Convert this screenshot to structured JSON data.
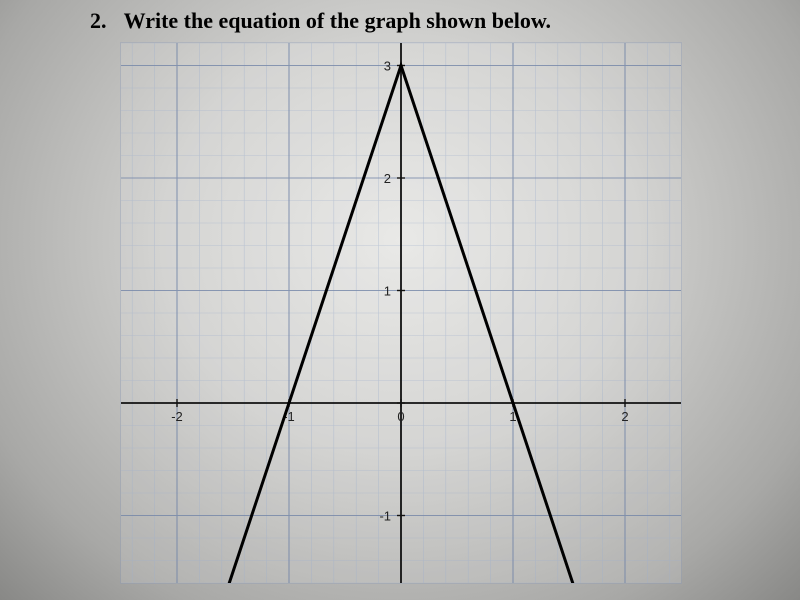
{
  "question": {
    "number": "2.",
    "text": "Write the equation of the graph shown below."
  },
  "chart": {
    "type": "line",
    "xlim": [
      -2.5,
      2.5
    ],
    "ylim": [
      -1.6,
      3.2
    ],
    "minor_step": 0.2,
    "major_x_ticks": [
      -2,
      -1,
      0,
      1,
      2
    ],
    "major_y_ticks": [
      -1,
      0,
      1,
      2,
      3
    ],
    "x_tick_labels": {
      "-2": "-2",
      "-1": "-1",
      "0": "0",
      "1": "1",
      "2": "2"
    },
    "y_tick_labels": {
      "-1": "-1",
      "1": "1",
      "2": "2",
      "3": "3"
    },
    "minor_grid_color": "#9fb0cc",
    "major_grid_color": "#6c7fa3",
    "axis_color": "#111111",
    "background_color": "transparent",
    "curve": {
      "color": "#000000",
      "width": 3,
      "points": [
        [
          -1.6,
          -1.8
        ],
        [
          0,
          3
        ],
        [
          1.6,
          -1.8
        ]
      ]
    }
  }
}
